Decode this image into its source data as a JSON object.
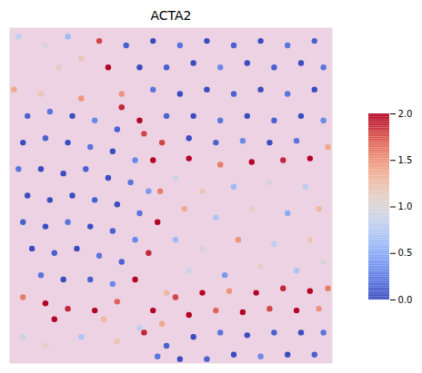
{
  "chart_data": {
    "type": "scatter",
    "title": "ACTA2",
    "x": [
      20,
      45,
      70,
      95,
      120,
      15,
      40,
      65,
      90,
      115,
      140,
      10,
      35,
      60,
      85,
      110,
      135,
      155,
      20,
      45,
      70,
      95,
      120,
      145,
      15,
      40,
      65,
      90,
      115,
      140,
      25,
      50,
      75,
      100,
      125,
      35,
      60,
      90,
      115,
      150,
      160,
      168,
      165,
      155,
      140,
      120,
      95,
      65,
      40,
      15,
      5,
      35,
      80,
      125,
      105,
      50,
      130,
      160,
      190,
      220,
      250,
      280,
      310,
      340,
      145,
      175,
      205,
      235,
      265,
      295,
      325,
      350,
      160,
      190,
      220,
      250,
      280,
      310,
      340,
      175,
      205,
      235,
      265,
      295,
      325,
      350,
      200,
      230,
      260,
      290,
      320,
      100,
      110,
      125,
      145,
      170,
      200,
      235,
      270,
      305,
      335,
      355,
      80,
      10,
      40,
      65,
      55,
      185,
      215,
      250,
      290,
      330,
      195,
      230,
      270,
      310,
      345,
      185,
      215,
      255,
      295,
      335,
      200,
      240,
      280,
      320,
      350,
      175,
      15,
      40,
      80,
      120,
      145,
      160,
      185,
      215,
      245,
      275,
      305,
      335,
      355,
      150,
      170,
      200,
      230,
      260,
      290,
      320,
      345,
      175,
      205,
      235,
      265,
      295,
      325,
      350,
      190,
      220,
      250,
      280,
      310,
      340,
      165
    ],
    "y": [
      100,
      95,
      100,
      105,
      115,
      130,
      125,
      130,
      135,
      140,
      150,
      160,
      160,
      165,
      160,
      170,
      175,
      185,
      190,
      195,
      190,
      195,
      200,
      210,
      220,
      225,
      220,
      225,
      230,
      240,
      250,
      255,
      250,
      258,
      265,
      280,
      285,
      285,
      290,
      120,
      150,
      185,
      220,
      255,
      285,
      310,
      320,
      318,
      312,
      305,
      70,
      75,
      80,
      90,
      330,
      330,
      20,
      15,
      20,
      15,
      20,
      15,
      20,
      15,
      45,
      45,
      40,
      45,
      40,
      45,
      40,
      45,
      70,
      75,
      70,
      75,
      70,
      75,
      70,
      100,
      100,
      105,
      100,
      105,
      100,
      105,
      125,
      130,
      128,
      130,
      128,
      15,
      45,
      75,
      105,
      130,
      148,
      155,
      152,
      150,
      148,
      135,
      35,
      10,
      20,
      10,
      45,
      170,
      185,
      180,
      175,
      180,
      205,
      215,
      205,
      210,
      205,
      240,
      250,
      240,
      245,
      240,
      275,
      280,
      270,
      275,
      265,
      300,
      350,
      360,
      350,
      355,
      340,
      320,
      305,
      300,
      298,
      300,
      295,
      298,
      295,
      345,
      335,
      325,
      320,
      322,
      318,
      320,
      318,
      360,
      350,
      345,
      348,
      345,
      345,
      345,
      375,
      375,
      370,
      372,
      370,
      370,
      372
    ],
    "values": [
      0.1,
      0.2,
      0.0,
      0.3,
      0.1,
      0.0,
      0.1,
      0.0,
      0.2,
      0.0,
      0.3,
      0.2,
      0.0,
      0.0,
      0.1,
      0.0,
      0.2,
      0.4,
      0.0,
      0.0,
      0.0,
      0.1,
      0.0,
      0.2,
      0.1,
      0.0,
      0.2,
      0.0,
      0.1,
      0.3,
      0.0,
      0.1,
      0.0,
      0.2,
      0.1,
      0.2,
      0.0,
      0.1,
      0.3,
      1.8,
      2.0,
      1.6,
      2.0,
      1.9,
      2.0,
      1.7,
      2.0,
      1.9,
      2.0,
      1.6,
      1.4,
      1.2,
      1.5,
      1.9,
      1.3,
      2.0,
      0.1,
      0.0,
      0.2,
      0.0,
      0.1,
      0.0,
      0.2,
      0.1,
      0.0,
      0.1,
      0.0,
      0.3,
      0.0,
      0.1,
      0.0,
      0.2,
      0.2,
      0.0,
      0.0,
      0.1,
      0.0,
      0.2,
      0.0,
      0.1,
      0.0,
      0.2,
      0.0,
      0.1,
      0.0,
      0.3,
      0.0,
      0.1,
      0.3,
      0.0,
      0.2,
      1.8,
      2.0,
      1.5,
      2.0,
      1.8,
      2.0,
      1.6,
      2.0,
      1.9,
      2.0,
      1.4,
      1.2,
      0.8,
      1.0,
      0.6,
      1.1,
      0.9,
      1.2,
      0.6,
      1.0,
      0.8,
      1.4,
      0.7,
      1.1,
      0.5,
      1.3,
      0.6,
      1.0,
      1.5,
      0.8,
      1.2,
      0.9,
      0.4,
      1.1,
      0.7,
      1.0,
      1.3,
      0.9,
      1.1,
      0.7,
      1.2,
      0.8,
      2.0,
      1.8,
      2.0,
      1.5,
      2.0,
      1.9,
      2.0,
      1.6,
      1.9,
      1.4,
      2.0,
      1.7,
      2.0,
      1.8,
      2.0,
      1.5,
      0.1,
      0.0,
      0.2,
      0.0,
      0.1,
      0.0,
      0.2,
      0.0,
      0.1,
      0.0,
      0.3,
      0.0,
      0.1,
      0.2
    ],
    "xlim": [
      0,
      360
    ],
    "ylim": [
      0,
      380
    ],
    "tick_labels": false,
    "colorbar": {
      "range": [
        0,
        2
      ],
      "ticks": [
        {
          "value": 0,
          "label": "0.0"
        },
        {
          "value": 0.5,
          "label": "0.5"
        },
        {
          "value": 1,
          "label": "1.0"
        },
        {
          "value": 1.5,
          "label": "1.5"
        },
        {
          "value": 2,
          "label": "2.0"
        }
      ]
    }
  }
}
